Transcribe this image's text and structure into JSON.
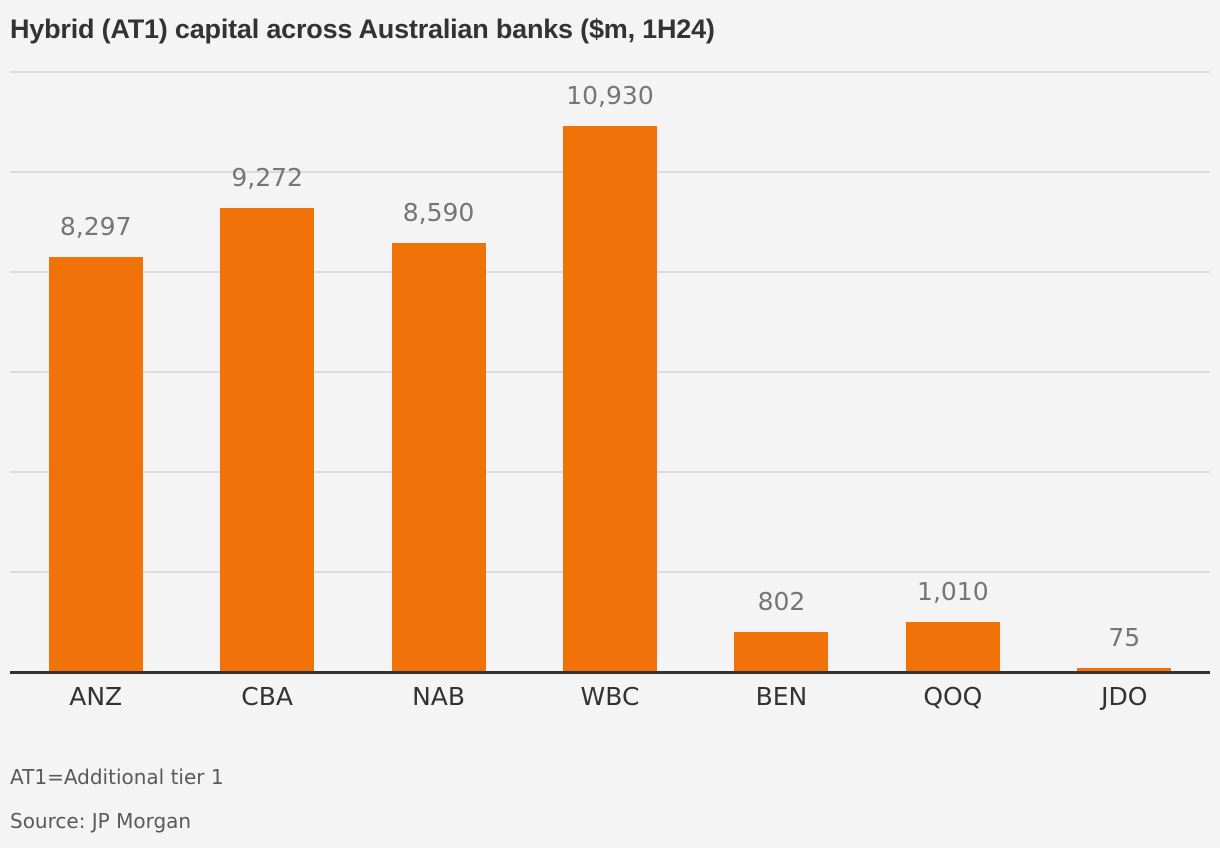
{
  "title": "Hybrid (AT1) capital across Australian banks ($m, 1H24)",
  "notes": {
    "definition": "AT1=Additional tier 1",
    "source": "Source: JP Morgan"
  },
  "colors": {
    "bar": "#f07208",
    "background": "#f4f4f4",
    "grid": "#dcdcdc",
    "axis": "#333333"
  },
  "chart_data": {
    "type": "bar",
    "title": "Hybrid (AT1) capital across Australian banks ($m, 1H24)",
    "xlabel": "",
    "ylabel": "",
    "categories": [
      "ANZ",
      "CBA",
      "NAB",
      "WBC",
      "BEN",
      "QOQ",
      "JDO"
    ],
    "values": [
      8297,
      9272,
      8590,
      10930,
      802,
      1010,
      75
    ],
    "value_labels": [
      "8,297",
      "9,272",
      "8,590",
      "10,930",
      "802",
      "1,010",
      "75"
    ],
    "ylim": [
      0,
      12000
    ],
    "gridlines": [
      0,
      2000,
      4000,
      6000,
      8000,
      10000,
      12000
    ],
    "y_tick_labels_visible": false,
    "grid": true,
    "legend": null
  }
}
